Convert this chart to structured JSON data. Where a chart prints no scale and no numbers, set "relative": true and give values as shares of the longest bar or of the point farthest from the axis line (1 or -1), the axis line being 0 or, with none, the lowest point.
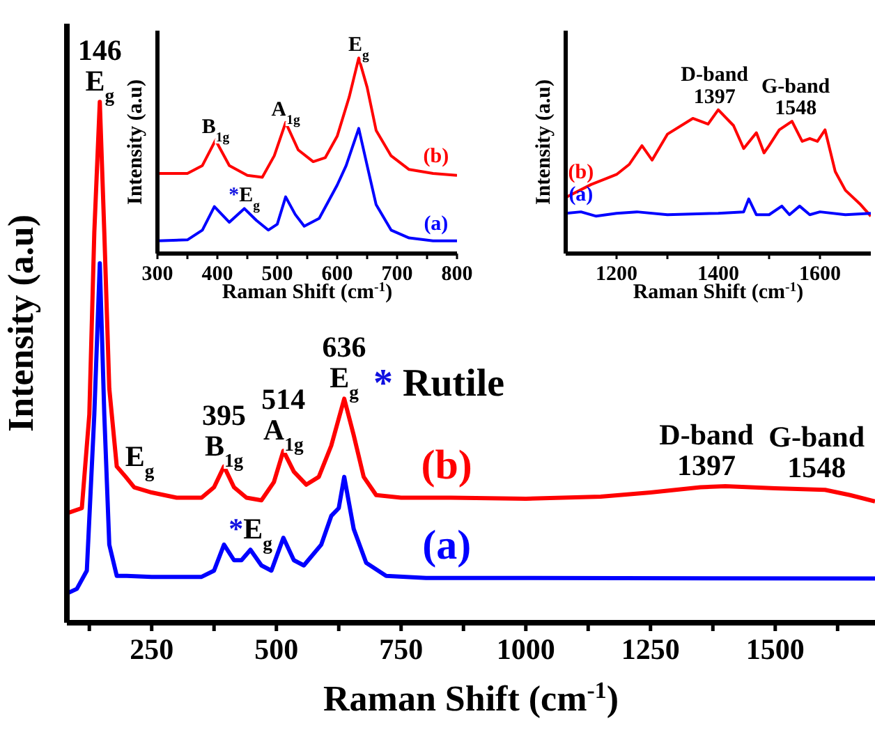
{
  "chart_data": [
    {
      "type": "line",
      "relative": true,
      "xlabel": "Raman Shift (cm$^{-1}$)",
      "ylabel": "Intensity (a.u)",
      "xlim": [
        80,
        1700
      ],
      "xticks": [
        {
          "value": 125,
          "label": null
        },
        250,
        {
          "value": 375,
          "label": null
        },
        500,
        {
          "value": 625,
          "label": null
        },
        750,
        {
          "value": 875,
          "label": null
        },
        1000,
        {
          "value": 1125,
          "label": null
        },
        1250,
        {
          "value": 1375,
          "label": null
        },
        1500,
        {
          "value": 1625,
          "label": null
        }
      ],
      "series": [
        {
          "name": "(b)",
          "color": "#ff0000",
          "x": [
            80,
            110,
            125,
            135,
            146,
            155,
            165,
            180,
            198,
            215,
            250,
            300,
            350,
            375,
            395,
            415,
            440,
            470,
            495,
            514,
            535,
            560,
            585,
            610,
            636,
            655,
            675,
            700,
            750,
            850,
            1000,
            1150,
            1250,
            1350,
            1400,
            1500,
            1600,
            1650,
            1700
          ],
          "values": [
            0.21,
            0.22,
            0.4,
            0.75,
            1,
            0.75,
            0.45,
            0.3,
            0.28,
            0.26,
            0.25,
            0.24,
            0.24,
            0.26,
            0.3,
            0.26,
            0.24,
            0.235,
            0.27,
            0.33,
            0.29,
            0.265,
            0.28,
            0.34,
            0.43,
            0.36,
            0.28,
            0.245,
            0.24,
            0.24,
            0.238,
            0.242,
            0.25,
            0.26,
            0.262,
            0.258,
            0.255,
            0.245,
            0.233
          ]
        },
        {
          "name": "(a)",
          "color": "#0000ff",
          "x": [
            80,
            100,
            120,
            135,
            146,
            155,
            165,
            180,
            200,
            250,
            350,
            375,
            395,
            415,
            430,
            448,
            470,
            490,
            514,
            535,
            555,
            590,
            610,
            625,
            636,
            655,
            680,
            720,
            800,
            1700
          ],
          "values": [
            0.056,
            0.065,
            0.1,
            0.4,
            0.69,
            0.4,
            0.15,
            0.09,
            0.09,
            0.088,
            0.088,
            0.1,
            0.15,
            0.12,
            0.12,
            0.14,
            0.11,
            0.1,
            0.163,
            0.12,
            0.11,
            0.15,
            0.205,
            0.22,
            0.28,
            0.18,
            0.115,
            0.09,
            0.086,
            0.085
          ]
        }
      ],
      "annotations": [
        {
          "text": "146\nE$_{g}$",
          "x": 146,
          "y": 1
        },
        {
          "text": "E$_{g}$",
          "x": 198,
          "y": 0.28
        },
        {
          "text": "395\nB$_{1g}$",
          "x": 395,
          "y": 0.3
        },
        {
          "text": "514\nA$_{1g}$",
          "x": 514,
          "y": 0.33
        },
        {
          "text": "636\nE$_{g}$",
          "x": 636,
          "y": 0.43
        },
        {
          "text": "*E$_{g}$",
          "x": 448,
          "y": 0.14
        },
        {
          "text": "D-band\n1397",
          "x": 1397,
          "y": 0.262
        },
        {
          "text": "G-band\n1548",
          "x": 1548,
          "y": 0.258
        },
        "* Rutile"
      ]
    },
    {
      "type": "line",
      "relative": true,
      "xlabel": "Raman Shift (cm$^{-1}$)",
      "ylabel": "Intensity (a.u)",
      "xlim": [
        300,
        800
      ],
      "xticks": [
        300,
        {
          "value": 350,
          "label": null
        },
        400,
        {
          "value": 450,
          "label": null
        },
        500,
        {
          "value": 550,
          "label": null
        },
        600,
        {
          "value": 650,
          "label": null
        },
        700,
        {
          "value": 750,
          "label": null
        },
        800
      ],
      "series": [
        {
          "name": "(b)",
          "color": "#ff0000",
          "x": [
            300,
            350,
            375,
            397,
            420,
            450,
            475,
            495,
            514,
            535,
            560,
            580,
            600,
            620,
            636,
            650,
            665,
            690,
            720,
            760,
            800
          ],
          "values": [
            0.41,
            0.41,
            0.45,
            0.58,
            0.45,
            0.4,
            0.39,
            0.5,
            0.67,
            0.53,
            0.47,
            0.49,
            0.6,
            0.8,
            1,
            0.85,
            0.63,
            0.5,
            0.43,
            0.41,
            0.4
          ]
        },
        {
          "name": "(a)",
          "color": "#0000ff",
          "x": [
            300,
            350,
            375,
            395,
            420,
            445,
            465,
            485,
            500,
            514,
            530,
            545,
            570,
            600,
            615,
            636,
            650,
            665,
            690,
            720,
            760,
            800
          ],
          "values": [
            0.065,
            0.07,
            0.12,
            0.24,
            0.16,
            0.23,
            0.17,
            0.12,
            0.15,
            0.29,
            0.2,
            0.14,
            0.18,
            0.35,
            0.45,
            0.64,
            0.45,
            0.25,
            0.12,
            0.08,
            0.065,
            0.065
          ]
        }
      ],
      "annotations": [
        {
          "text": "B$_{1g}$",
          "x": 397,
          "y": 0.58
        },
        {
          "text": "A$_{1g}$",
          "x": 514,
          "y": 0.67
        },
        {
          "text": "E$_{g}$",
          "x": 636,
          "y": 1
        },
        {
          "text": "*E$_{g}$",
          "x": 445,
          "y": 0.23
        }
      ]
    },
    {
      "type": "line",
      "relative": true,
      "xlabel": "Raman Shift (cm$^{-1}$)",
      "ylabel": "Intensity (a.u)",
      "xlim": [
        1100,
        1700
      ],
      "xticks": [
        1200,
        {
          "value": 1300,
          "label": null
        },
        1400,
        {
          "value": 1500,
          "label": null
        },
        1600
      ],
      "series": [
        {
          "name": "(b)",
          "color": "#ff0000",
          "x": [
            1100,
            1150,
            1200,
            1225,
            1250,
            1270,
            1300,
            1350,
            1380,
            1400,
            1430,
            1450,
            1475,
            1490,
            1500,
            1520,
            1545,
            1565,
            1580,
            1595,
            1610,
            1630,
            1650,
            1680,
            1700
          ],
          "values": [
            0.39,
            0.48,
            0.55,
            0.62,
            0.75,
            0.65,
            0.83,
            0.94,
            0.9,
            1,
            0.89,
            0.73,
            0.84,
            0.7,
            0.75,
            0.86,
            0.92,
            0.78,
            0.8,
            0.78,
            0.86,
            0.57,
            0.44,
            0.34,
            0.26
          ]
        },
        {
          "name": "(a)",
          "color": "#0000ff",
          "x": [
            1100,
            1130,
            1160,
            1200,
            1240,
            1300,
            1400,
            1450,
            1460,
            1475,
            1500,
            1525,
            1540,
            1560,
            1580,
            1600,
            1650,
            1700
          ],
          "values": [
            0.28,
            0.29,
            0.26,
            0.28,
            0.29,
            0.27,
            0.28,
            0.29,
            0.38,
            0.27,
            0.27,
            0.33,
            0.27,
            0.33,
            0.27,
            0.29,
            0.27,
            0.28
          ]
        }
      ],
      "annotations": [
        {
          "text": "D-band\n1397",
          "x": 1397,
          "y": 1
        },
        {
          "text": "G-band\n1548",
          "x": 1548,
          "y": 0.92
        }
      ]
    }
  ]
}
